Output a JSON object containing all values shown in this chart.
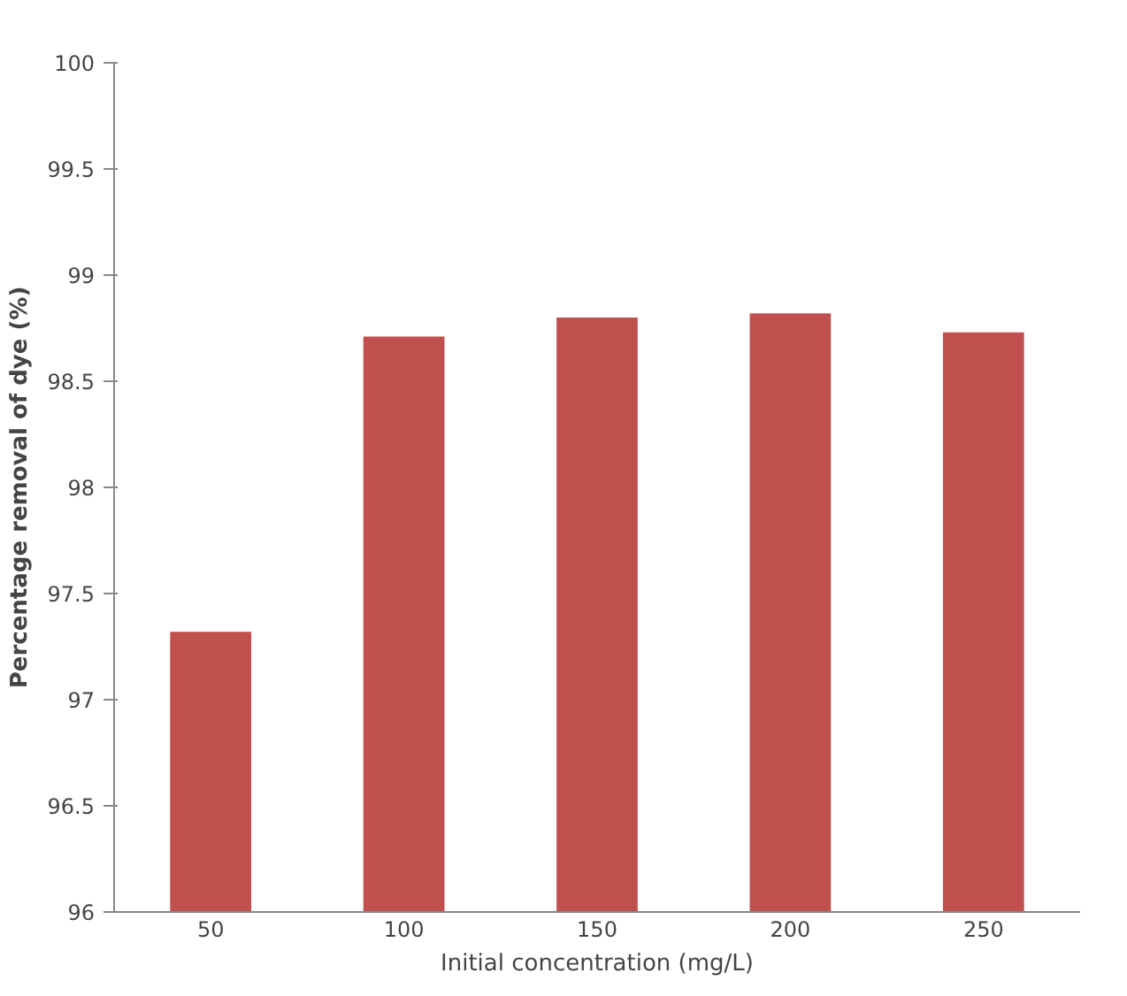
{
  "chart_data": {
    "type": "bar",
    "xlabel": "Initial concentration (mg/L)",
    "ylabel": "Percentage removal of dye (%)",
    "categories": [
      "50",
      "100",
      "150",
      "200",
      "250"
    ],
    "values": [
      97.32,
      98.71,
      98.8,
      98.82,
      98.73
    ],
    "color": "#c0504d",
    "ylim": [
      96,
      100
    ],
    "yticks": [
      96,
      96.5,
      97,
      97.5,
      98,
      98.5,
      99,
      99.5,
      100
    ],
    "grid": false
  }
}
